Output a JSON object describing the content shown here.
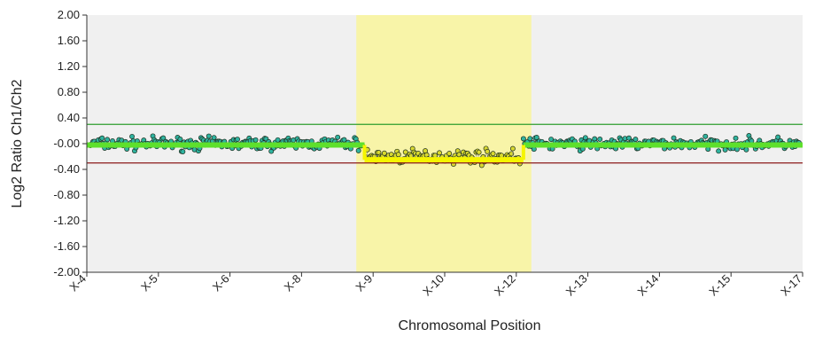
{
  "chart_data": {
    "type": "scatter",
    "title": "",
    "xlabel": "Chromosomal Position",
    "ylabel": "Log2 Ratio Ch1/Ch2",
    "ylim": [
      -2.0,
      2.0
    ],
    "yticks": [
      "2.00",
      "1.60",
      "1.20",
      "0.80",
      "0.40",
      "-0.00",
      "-0.40",
      "-0.80",
      "-1.20",
      "-1.60",
      "-2.00"
    ],
    "xticks": [
      "X-4",
      "X-5",
      "X-6",
      "X-8",
      "X-9",
      "X-10",
      "X-12",
      "X-13",
      "X-14",
      "X-15",
      "X-17"
    ],
    "grid": false,
    "legend": "none",
    "colors": {
      "plot_background": "#f0f0f0",
      "highlight_region": "#f8f4a8",
      "upper_threshold": "#2e9e2e",
      "lower_threshold": "#8b1a1a",
      "normal_segment": "#5ee02c",
      "loss_segment": "#f5f500",
      "normal_points": "#2fb3a0",
      "loss_points": "#d8d830"
    },
    "highlight_region": {
      "from": "X-9",
      "to": "X-12",
      "x_range": [
        4.0,
        6.0
      ]
    },
    "thresholds": {
      "upper": 0.3,
      "lower": -0.3
    },
    "segments": [
      {
        "x_range": [
          0.0,
          3.88
        ],
        "value": -0.02,
        "status": "normal"
      },
      {
        "x_range": [
          3.88,
          6.1
        ],
        "value": -0.25,
        "status": "loss"
      },
      {
        "x_range": [
          6.1,
          10.0
        ],
        "value": -0.02,
        "status": "normal"
      }
    ],
    "point_groups": [
      {
        "x_range": [
          0.05,
          3.85
        ],
        "mean": 0.0,
        "spread": 0.09,
        "count": 210,
        "status": "normal"
      },
      {
        "x_range": [
          3.9,
          6.05
        ],
        "mean": -0.2,
        "spread": 0.1,
        "count": 110,
        "status": "loss"
      },
      {
        "x_range": [
          6.1,
          9.95
        ],
        "mean": 0.0,
        "spread": 0.09,
        "count": 210,
        "status": "normal"
      }
    ]
  }
}
